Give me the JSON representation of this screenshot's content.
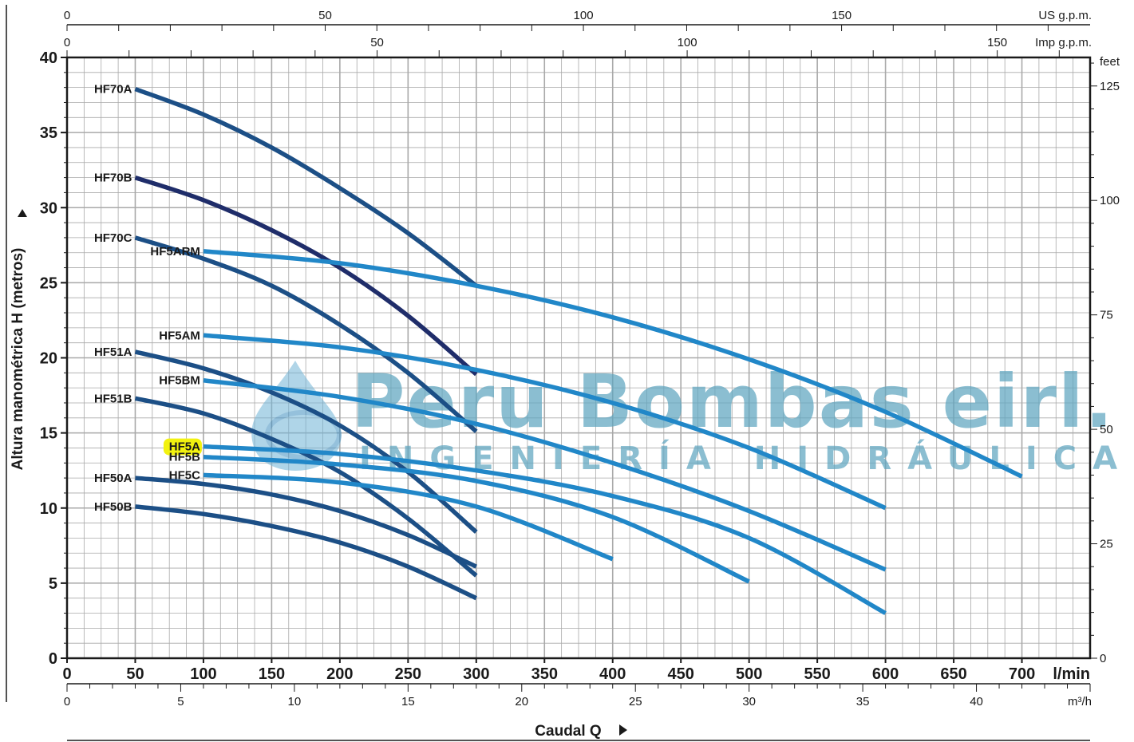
{
  "watermark": {
    "title": "Peru Bombas eirl.",
    "subtitle": "INGENIERÍA HIDRÁULICA"
  },
  "colors": {
    "dark_blue": "#1c4f86",
    "navy": "#1f2d6a",
    "light_blue": "#2187c8",
    "grid": "#a9a9a9",
    "highlight": "#f2f20f"
  },
  "chart_data": {
    "type": "line",
    "xlabel": "Caudal Q",
    "ylabel": "Altura manométrica H (metros)",
    "x_unit": "l/min",
    "xlim": [
      0,
      750
    ],
    "ylim": [
      0,
      40
    ],
    "x_ticks": [
      0,
      50,
      100,
      150,
      200,
      250,
      300,
      350,
      400,
      450,
      500,
      550,
      600,
      650,
      700
    ],
    "y_ticks": [
      0,
      5,
      10,
      15,
      20,
      25,
      30,
      35,
      40
    ],
    "grid": true,
    "secondary_axes": {
      "m3h": {
        "unit": "m³/h",
        "ticks": [
          0,
          5,
          10,
          15,
          20,
          25,
          30,
          35,
          40
        ]
      },
      "us_gpm": {
        "unit": "US g.p.m.",
        "ticks": [
          0,
          50,
          100,
          150
        ]
      },
      "imp_gpm": {
        "unit": "Imp g.p.m.",
        "ticks": [
          0,
          50,
          100,
          150
        ]
      },
      "feet": {
        "unit": "feet",
        "ticks": [
          0,
          25,
          50,
          75,
          100,
          125
        ]
      }
    },
    "series": [
      {
        "name": "HF70A",
        "color": "dark",
        "x": [
          50,
          100,
          150,
          200,
          250,
          300
        ],
        "y": [
          37.9,
          36.2,
          34.0,
          31.3,
          28.3,
          24.8
        ]
      },
      {
        "name": "HF70B",
        "color": "navy",
        "x": [
          50,
          100,
          150,
          200,
          250,
          300
        ],
        "y": [
          32.0,
          30.5,
          28.5,
          26.0,
          22.8,
          18.9
        ]
      },
      {
        "name": "HF70C",
        "color": "dark",
        "x": [
          50,
          100,
          150,
          200,
          250,
          300
        ],
        "y": [
          28.0,
          26.6,
          24.8,
          22.2,
          19.0,
          15.1
        ]
      },
      {
        "name": "HF51A",
        "color": "dark",
        "x": [
          50,
          100,
          150,
          200,
          250,
          300
        ],
        "y": [
          20.4,
          19.3,
          17.7,
          15.5,
          12.4,
          8.4
        ]
      },
      {
        "name": "HF51B",
        "color": "dark",
        "x": [
          50,
          100,
          150,
          200,
          250,
          300
        ],
        "y": [
          17.3,
          16.3,
          14.6,
          12.4,
          9.3,
          5.5
        ]
      },
      {
        "name": "HF50A",
        "color": "dark",
        "x": [
          50,
          100,
          150,
          200,
          250,
          300
        ],
        "y": [
          12.0,
          11.6,
          10.9,
          9.8,
          8.2,
          6.1
        ]
      },
      {
        "name": "HF50B",
        "color": "dark",
        "x": [
          50,
          100,
          150,
          200,
          250,
          300
        ],
        "y": [
          10.1,
          9.6,
          8.8,
          7.7,
          6.1,
          4.0
        ]
      },
      {
        "name": "HF5ARM",
        "color": "light",
        "x": [
          100,
          200,
          300,
          400,
          500,
          600,
          700
        ],
        "y": [
          27.1,
          26.3,
          24.8,
          22.7,
          19.9,
          16.4,
          12.1
        ]
      },
      {
        "name": "HF5AM",
        "color": "light",
        "x": [
          100,
          200,
          300,
          400,
          500,
          600
        ],
        "y": [
          21.5,
          20.7,
          19.2,
          17.0,
          14.0,
          10.0
        ]
      },
      {
        "name": "HF5BM",
        "color": "light",
        "x": [
          100,
          200,
          300,
          400,
          500,
          600
        ],
        "y": [
          18.5,
          17.4,
          15.6,
          13.0,
          9.8,
          5.9
        ]
      },
      {
        "name": "HF5A",
        "color": "light",
        "highlight": true,
        "x": [
          100,
          200,
          300,
          400,
          500,
          600
        ],
        "y": [
          14.1,
          13.6,
          12.5,
          10.8,
          8.0,
          3.0
        ]
      },
      {
        "name": "HF5B",
        "color": "light",
        "x": [
          100,
          200,
          300,
          400,
          500
        ],
        "y": [
          13.4,
          12.9,
          11.8,
          9.4,
          5.1
        ]
      },
      {
        "name": "HF5C",
        "color": "light",
        "x": [
          100,
          200,
          300,
          400
        ],
        "y": [
          12.2,
          11.7,
          10.1,
          6.6
        ]
      }
    ]
  }
}
